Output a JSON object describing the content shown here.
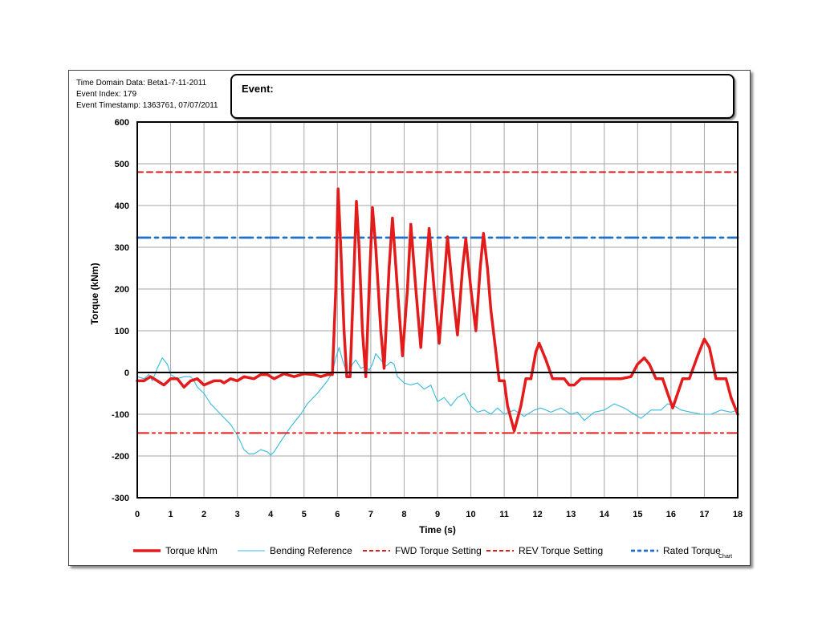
{
  "header": {
    "line1": "Time Domain Data: Beta1-7-11-2011",
    "line2": "Event Index: 179",
    "line3": "Event Timestamp: 1363761, 07/07/2011",
    "event_label": "Event:",
    "event_value": ""
  },
  "chart_data": {
    "type": "line",
    "xlabel": "Time (s)",
    "ylabel": "Torque (kNm)",
    "xlim": [
      0,
      18
    ],
    "ylim": [
      -300,
      600
    ],
    "x_ticks": [
      "0",
      "1",
      "2",
      "3",
      "4",
      "5",
      "6",
      "7",
      "8",
      "9",
      "10",
      "11",
      "12",
      "13",
      "14",
      "15",
      "16",
      "17",
      "18"
    ],
    "y_ticks": [
      "600",
      "500",
      "400",
      "300",
      "200",
      "100",
      "0",
      "-100",
      "-200",
      "-300"
    ],
    "grid": true,
    "legend_position": "bottom",
    "corner_note": "Chart",
    "series": [
      {
        "name": "Torque kNm",
        "color": "#e31b1b",
        "style": "solid-thick",
        "points": [
          [
            0,
            -20
          ],
          [
            0.2,
            -20
          ],
          [
            0.4,
            -10
          ],
          [
            0.6,
            -20
          ],
          [
            0.8,
            -30
          ],
          [
            1.0,
            -15
          ],
          [
            1.2,
            -15
          ],
          [
            1.4,
            -35
          ],
          [
            1.6,
            -20
          ],
          [
            1.8,
            -15
          ],
          [
            2.0,
            -30
          ],
          [
            2.3,
            -20
          ],
          [
            2.5,
            -20
          ],
          [
            2.6,
            -25
          ],
          [
            2.8,
            -15
          ],
          [
            3.0,
            -20
          ],
          [
            3.2,
            -10
          ],
          [
            3.5,
            -15
          ],
          [
            3.7,
            -5
          ],
          [
            3.9,
            -5
          ],
          [
            4.1,
            -15
          ],
          [
            4.4,
            -3
          ],
          [
            4.7,
            -10
          ],
          [
            5.0,
            -3
          ],
          [
            5.3,
            -5
          ],
          [
            5.5,
            -10
          ],
          [
            5.7,
            -5
          ],
          [
            5.85,
            -5
          ],
          [
            5.95,
            200
          ],
          [
            6.02,
            440
          ],
          [
            6.1,
            300
          ],
          [
            6.2,
            100
          ],
          [
            6.28,
            -10
          ],
          [
            6.38,
            -10
          ],
          [
            6.5,
            250
          ],
          [
            6.57,
            410
          ],
          [
            6.65,
            300
          ],
          [
            6.75,
            100
          ],
          [
            6.85,
            -10
          ],
          [
            6.95,
            200
          ],
          [
            7.05,
            395
          ],
          [
            7.15,
            300
          ],
          [
            7.3,
            100
          ],
          [
            7.4,
            10
          ],
          [
            7.55,
            250
          ],
          [
            7.65,
            370
          ],
          [
            7.8,
            200
          ],
          [
            7.95,
            40
          ],
          [
            8.1,
            200
          ],
          [
            8.2,
            355
          ],
          [
            8.35,
            200
          ],
          [
            8.5,
            60
          ],
          [
            8.62,
            200
          ],
          [
            8.75,
            345
          ],
          [
            8.9,
            200
          ],
          [
            9.05,
            70
          ],
          [
            9.18,
            200
          ],
          [
            9.3,
            325
          ],
          [
            9.45,
            200
          ],
          [
            9.6,
            90
          ],
          [
            9.75,
            250
          ],
          [
            9.85,
            320
          ],
          [
            10.0,
            200
          ],
          [
            10.15,
            100
          ],
          [
            10.28,
            250
          ],
          [
            10.38,
            333
          ],
          [
            10.5,
            250
          ],
          [
            10.6,
            150
          ],
          [
            10.75,
            50
          ],
          [
            10.85,
            -20
          ],
          [
            11.0,
            -20
          ],
          [
            11.1,
            -80
          ],
          [
            11.3,
            -140
          ],
          [
            11.5,
            -80
          ],
          [
            11.65,
            -15
          ],
          [
            11.8,
            -15
          ],
          [
            11.95,
            50
          ],
          [
            12.05,
            70
          ],
          [
            12.25,
            30
          ],
          [
            12.45,
            -15
          ],
          [
            12.8,
            -15
          ],
          [
            12.95,
            -30
          ],
          [
            13.1,
            -30
          ],
          [
            13.3,
            -15
          ],
          [
            13.8,
            -15
          ],
          [
            14.2,
            -15
          ],
          [
            14.5,
            -15
          ],
          [
            14.8,
            -10
          ],
          [
            15.0,
            20
          ],
          [
            15.2,
            35
          ],
          [
            15.35,
            20
          ],
          [
            15.55,
            -15
          ],
          [
            15.75,
            -15
          ],
          [
            15.9,
            -50
          ],
          [
            16.05,
            -85
          ],
          [
            16.2,
            -50
          ],
          [
            16.35,
            -15
          ],
          [
            16.55,
            -15
          ],
          [
            16.8,
            40
          ],
          [
            17.0,
            80
          ],
          [
            17.15,
            60
          ],
          [
            17.35,
            -15
          ],
          [
            17.65,
            -15
          ],
          [
            17.8,
            -60
          ],
          [
            18.0,
            -100
          ]
        ]
      },
      {
        "name": "Bending Reference",
        "color": "#33bbdd",
        "style": "solid-thin",
        "points": [
          [
            0,
            -10
          ],
          [
            0.2,
            -15
          ],
          [
            0.35,
            -5
          ],
          [
            0.45,
            -20
          ],
          [
            0.6,
            10
          ],
          [
            0.75,
            35
          ],
          [
            0.9,
            20
          ],
          [
            1.0,
            -5
          ],
          [
            1.2,
            -15
          ],
          [
            1.4,
            -10
          ],
          [
            1.6,
            -10
          ],
          [
            1.7,
            -20
          ],
          [
            1.8,
            -35
          ],
          [
            2.0,
            -50
          ],
          [
            2.2,
            -75
          ],
          [
            2.5,
            -100
          ],
          [
            2.8,
            -125
          ],
          [
            3.0,
            -150
          ],
          [
            3.2,
            -185
          ],
          [
            3.35,
            -195
          ],
          [
            3.5,
            -195
          ],
          [
            3.7,
            -185
          ],
          [
            3.9,
            -190
          ],
          [
            4.0,
            -198
          ],
          [
            4.1,
            -190
          ],
          [
            4.3,
            -165
          ],
          [
            4.6,
            -130
          ],
          [
            4.9,
            -100
          ],
          [
            5.1,
            -75
          ],
          [
            5.4,
            -50
          ],
          [
            5.7,
            -20
          ],
          [
            5.85,
            0
          ],
          [
            5.95,
            35
          ],
          [
            6.05,
            60
          ],
          [
            6.15,
            30
          ],
          [
            6.3,
            -5
          ],
          [
            6.45,
            20
          ],
          [
            6.55,
            30
          ],
          [
            6.7,
            10
          ],
          [
            6.85,
            15
          ],
          [
            6.95,
            5
          ],
          [
            7.05,
            20
          ],
          [
            7.15,
            45
          ],
          [
            7.3,
            30
          ],
          [
            7.45,
            15
          ],
          [
            7.6,
            25
          ],
          [
            7.7,
            20
          ],
          [
            7.8,
            -10
          ],
          [
            8.0,
            -25
          ],
          [
            8.2,
            -30
          ],
          [
            8.4,
            -25
          ],
          [
            8.6,
            -40
          ],
          [
            8.8,
            -30
          ],
          [
            9.0,
            -70
          ],
          [
            9.2,
            -60
          ],
          [
            9.4,
            -80
          ],
          [
            9.6,
            -60
          ],
          [
            9.8,
            -50
          ],
          [
            10.0,
            -80
          ],
          [
            10.2,
            -95
          ],
          [
            10.4,
            -90
          ],
          [
            10.6,
            -100
          ],
          [
            10.8,
            -85
          ],
          [
            11.0,
            -100
          ],
          [
            11.3,
            -90
          ],
          [
            11.6,
            -105
          ],
          [
            11.9,
            -90
          ],
          [
            12.1,
            -85
          ],
          [
            12.4,
            -95
          ],
          [
            12.7,
            -85
          ],
          [
            13.0,
            -100
          ],
          [
            13.2,
            -95
          ],
          [
            13.4,
            -115
          ],
          [
            13.7,
            -95
          ],
          [
            14.0,
            -90
          ],
          [
            14.3,
            -75
          ],
          [
            14.6,
            -85
          ],
          [
            14.9,
            -100
          ],
          [
            15.1,
            -110
          ],
          [
            15.4,
            -90
          ],
          [
            15.7,
            -90
          ],
          [
            15.9,
            -75
          ],
          [
            16.1,
            -80
          ],
          [
            16.3,
            -90
          ],
          [
            16.6,
            -95
          ],
          [
            16.9,
            -100
          ],
          [
            17.2,
            -100
          ],
          [
            17.5,
            -90
          ],
          [
            17.8,
            -95
          ],
          [
            18.0,
            -90
          ]
        ]
      },
      {
        "name": "FWD Torque Setting",
        "color": "#e31b1b",
        "style": "dashed",
        "points": [
          [
            0,
            480
          ],
          [
            18,
            480
          ]
        ]
      },
      {
        "name": "REV Torque Setting",
        "color": "#e31b1b",
        "style": "dash-dot-dot",
        "points": [
          [
            0,
            -145
          ],
          [
            18,
            -145
          ]
        ]
      },
      {
        "name": "Rated Torque",
        "color": "#1f6fc4",
        "style": "dash-dot",
        "points": [
          [
            0,
            323
          ],
          [
            18,
            323
          ]
        ]
      }
    ]
  }
}
